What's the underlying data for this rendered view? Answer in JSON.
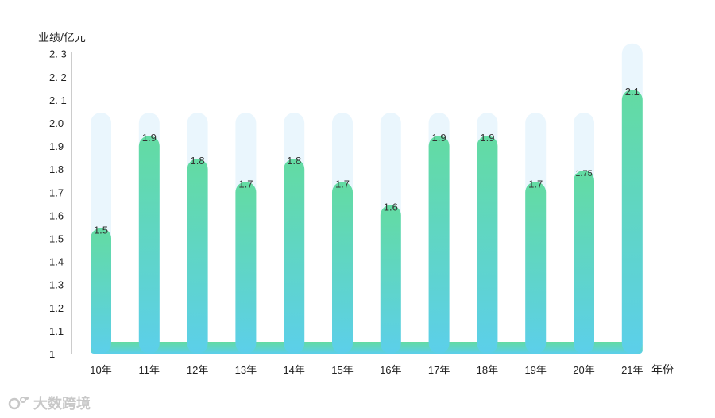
{
  "chart_data": {
    "type": "bar",
    "ylabel": "业绩/亿元",
    "xlabel": "年份",
    "categories": [
      "10年",
      "11年",
      "12年",
      "13年",
      "14年",
      "15年",
      "16年",
      "17年",
      "18年",
      "19年",
      "20年",
      "21年"
    ],
    "values": [
      1.5,
      1.9,
      1.8,
      1.7,
      1.8,
      1.7,
      1.6,
      1.9,
      1.9,
      1.7,
      1.75,
      2.1
    ],
    "value_labels": [
      "1.5",
      "1.9",
      "1.8",
      "1.7",
      "1.8",
      "1.7",
      "1.6",
      "1.9",
      "1.9",
      "1.7",
      "1.75",
      "2.1"
    ],
    "background_values": [
      2.0,
      2.0,
      2.0,
      2.0,
      2.0,
      2.0,
      2.0,
      2.0,
      2.0,
      2.0,
      2.0,
      2.3
    ],
    "ylim": [
      1,
      2.3
    ],
    "yticks": [
      "1",
      "1.1",
      "1.2",
      "1.3",
      "1.4",
      "1.5",
      "1.6",
      "1.7",
      "1.8",
      "1.9",
      "2.0",
      "2. 1",
      "2. 2",
      "2. 3"
    ],
    "ytick_values": [
      1,
      1.1,
      1.2,
      1.3,
      1.4,
      1.5,
      1.6,
      1.7,
      1.8,
      1.9,
      2.0,
      2.1,
      2.2,
      2.3
    ],
    "grid": false,
    "colors": {
      "bar_top": "#63dba2",
      "bar_bottom": "#5ccfea",
      "track": "#eaf6fd",
      "axis": "#999999"
    }
  },
  "watermark": {
    "text": "大数跨境",
    "icon": "logo-icon"
  }
}
